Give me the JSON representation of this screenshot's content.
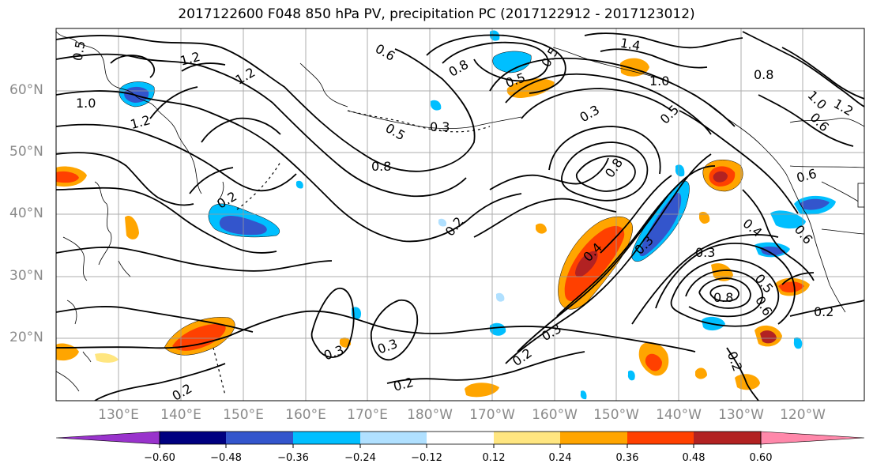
{
  "title": "2017122600 F048 850 hPa PV, precipitation PC (2017122912 - 2017123012)",
  "map": {
    "lat_labels": [
      "60°N",
      "50°N",
      "40°N",
      "30°N",
      "20°N"
    ],
    "lon_labels": [
      "130°E",
      "140°E",
      "150°E",
      "160°E",
      "170°E",
      "180°W",
      "170°W",
      "160°W",
      "150°W",
      "140°W",
      "130°W",
      "120°W"
    ],
    "contour_labels": [
      "0.6",
      "1.2",
      "1.2",
      "1.4",
      "1.0",
      "1.0",
      "1.2",
      "0.8",
      "0.5",
      "0.3",
      "0.5",
      "0.8",
      "0.3",
      "0.2",
      "0.2",
      "0.4",
      "0.3",
      "0.3",
      "0.8",
      "0.6",
      "0.5",
      "0.3",
      "0.2",
      "0.3",
      "0.3",
      "0.2",
      "0.2",
      "0.2",
      "0.8",
      "0.6",
      "0.8",
      "0.4",
      "0.6",
      "0.5",
      "0.2",
      "1.0",
      "1.2",
      "0.6",
      "0.5",
      "0.5"
    ]
  },
  "colorbar": {
    "tick_labels": [
      "−0.60",
      "−0.48",
      "−0.36",
      "−0.24",
      "−0.12",
      "0.12",
      "0.24",
      "0.36",
      "0.48",
      "0.60"
    ],
    "colors": [
      "#9933cc",
      "#000080",
      "#3355cc",
      "#00bfff",
      "#b0e0ff",
      "#ffffff",
      "#ffe680",
      "#ffa500",
      "#ff4000",
      "#b22222",
      "#ff88aa"
    ]
  }
}
